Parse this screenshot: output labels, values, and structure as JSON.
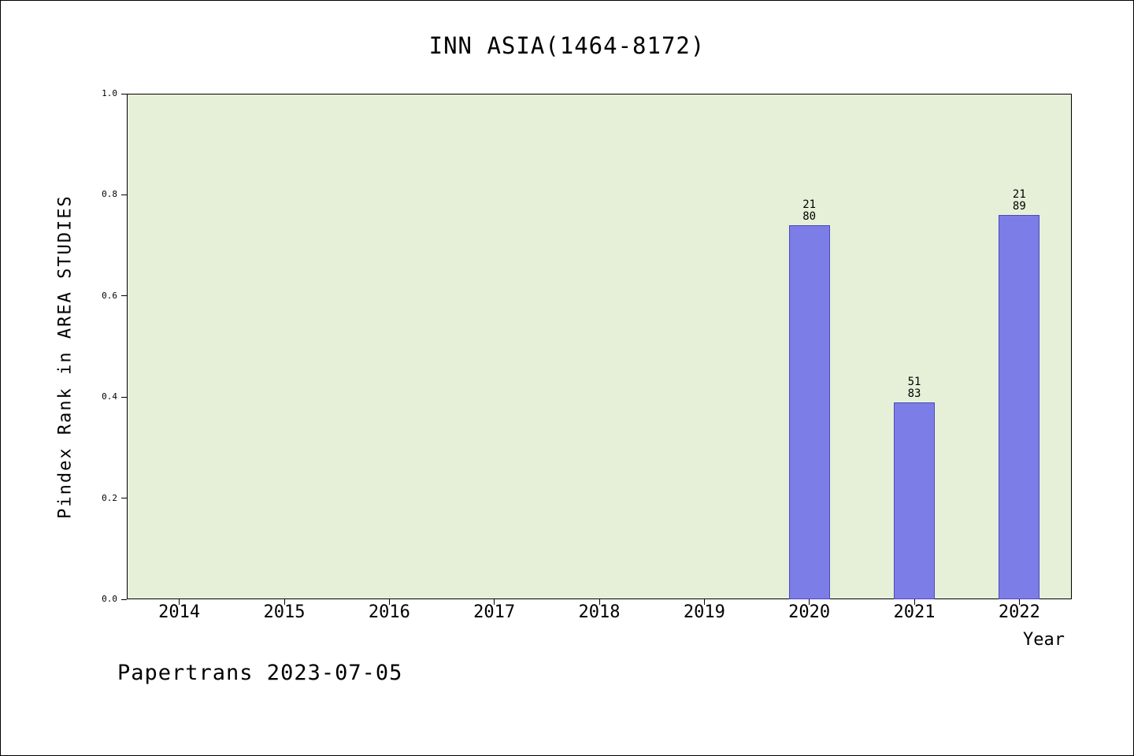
{
  "footer_text": "Papertrans 2023-07-05",
  "chart_data": {
    "type": "bar",
    "title": "INN ASIA(1464-8172)",
    "xlabel": "Year",
    "ylabel": "Pindex Rank in AREA STUDIES",
    "categories": [
      "2014",
      "2015",
      "2016",
      "2017",
      "2018",
      "2019",
      "2020",
      "2021",
      "2022"
    ],
    "values": [
      null,
      null,
      null,
      null,
      null,
      null,
      0.74,
      0.39,
      0.76
    ],
    "bar_annotations": [
      null,
      null,
      null,
      null,
      null,
      null,
      [
        "21",
        "80"
      ],
      [
        "51",
        "83"
      ],
      [
        "21",
        "89"
      ]
    ],
    "ylim": [
      0,
      1
    ],
    "yticks": [
      0.0,
      0.2,
      0.4,
      0.6,
      0.8,
      1.0
    ],
    "grid": false,
    "legend": false,
    "colors": {
      "bar": "#7d7de8",
      "bar_edge": "#4a4ab8",
      "plot_bg": "#e6f0d8",
      "frame": "#000000"
    }
  }
}
